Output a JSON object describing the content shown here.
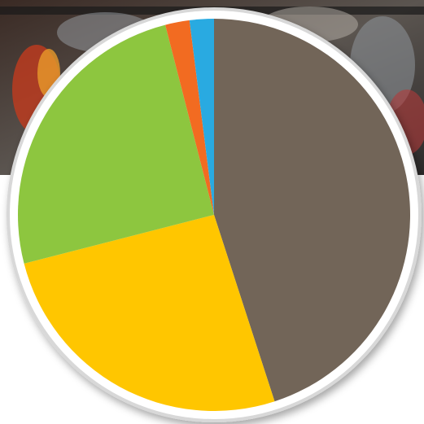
{
  "chart_data": {
    "type": "pie",
    "values": [
      45,
      26,
      25,
      2,
      2
    ],
    "colors": [
      "#726558",
      "#ffc600",
      "#8dc63f",
      "#f26b21",
      "#29aae1"
    ]
  }
}
